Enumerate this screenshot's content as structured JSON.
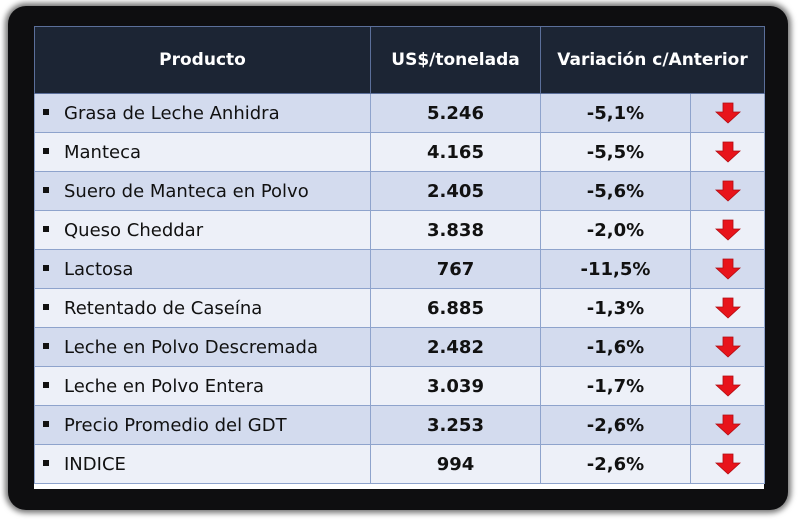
{
  "table": {
    "headers": {
      "product": "Producto",
      "price": "US$/tonelada",
      "variation": "Variación c/Anterior"
    },
    "rows": [
      {
        "product": "Grasa de Leche Anhidra",
        "price": "5.246",
        "variation": "-5,1%",
        "trend_icon": "arrow-down-icon"
      },
      {
        "product": "Manteca",
        "price": "4.165",
        "variation": "-5,5%",
        "trend_icon": "arrow-down-icon"
      },
      {
        "product": "Suero de Manteca en Polvo",
        "price": "2.405",
        "variation": "-5,6%",
        "trend_icon": "arrow-down-icon"
      },
      {
        "product": "Queso Cheddar",
        "price": "3.838",
        "variation": "-2,0%",
        "trend_icon": "arrow-down-icon"
      },
      {
        "product": "Lactosa",
        "price": "767",
        "variation": "-11,5%",
        "trend_icon": "arrow-down-icon"
      },
      {
        "product": "Retentado de Caseína",
        "price": "6.885",
        "variation": "-1,3%",
        "trend_icon": "arrow-down-icon"
      },
      {
        "product": "Leche en Polvo Descremada",
        "price": "2.482",
        "variation": "-1,6%",
        "trend_icon": "arrow-down-icon"
      },
      {
        "product": "Leche en Polvo Entera",
        "price": "3.039",
        "variation": "-1,7%",
        "trend_icon": "arrow-down-icon"
      },
      {
        "product": "Precio Promedio del GDT",
        "price": "3.253",
        "variation": "-2,6%",
        "trend_icon": "arrow-down-icon"
      },
      {
        "product": "INDICE",
        "price": "994",
        "variation": "-2,6%",
        "trend_icon": "arrow-down-icon"
      }
    ]
  },
  "colors": {
    "header_bg": "#1c2534",
    "row_odd_bg": "#d3dbee",
    "row_even_bg": "#edf0f8",
    "arrow": "#e8141b"
  }
}
